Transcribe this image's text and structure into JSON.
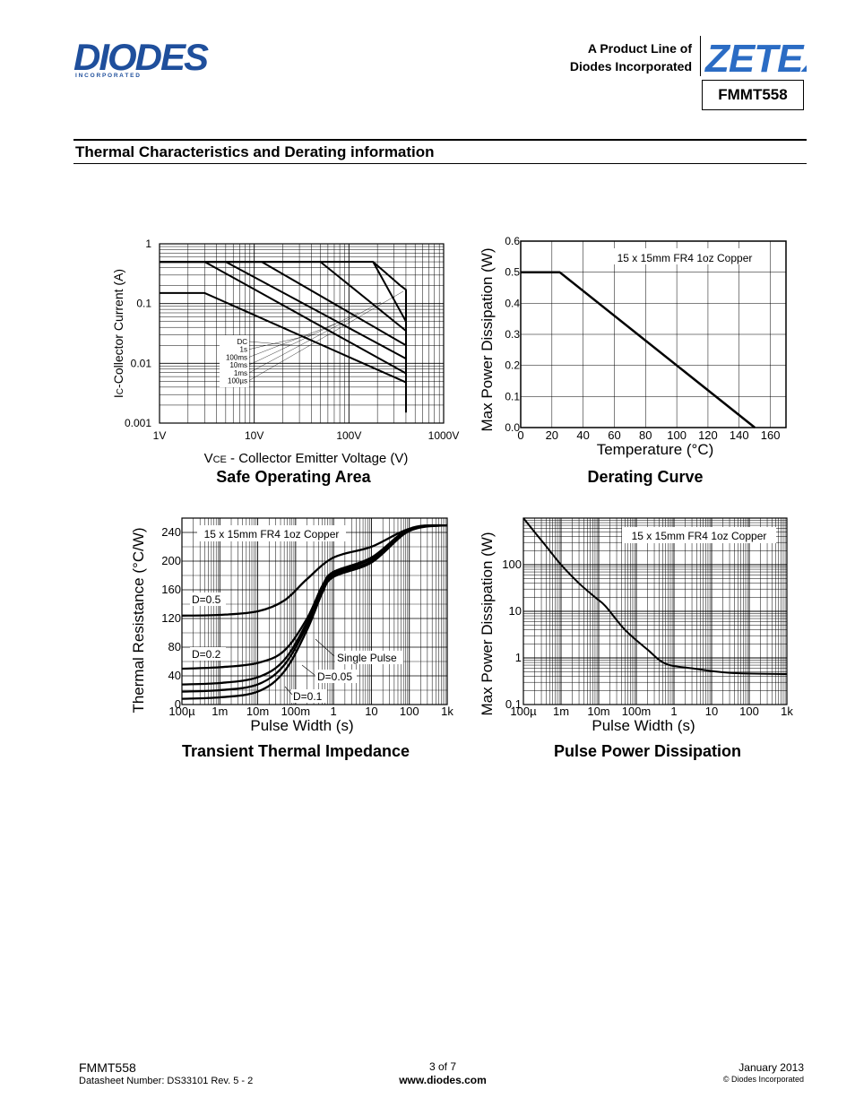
{
  "header": {
    "brand": "DIODES",
    "brand_sub": "I N C O R P O R A T E D",
    "product_line_1": "A Product Line of",
    "product_line_2": "Diodes Incorporated",
    "zetex": "ZETEX",
    "part": "FMMT558"
  },
  "section_title": "Thermal Characteristics and Derating information",
  "colors": {
    "brand_blue": "#1f4f9c",
    "zetex_blue": "#2b6cc4",
    "line": "#000000"
  },
  "chart_data": [
    {
      "type": "line",
      "title": "Safe Operating Area",
      "xlabel_prefix": "V",
      "xlabel_sub": "CE",
      "xlabel_rest": " - Collector Emitter Voltage (V)",
      "ylabel_prefix": "I",
      "ylabel_sub": "C",
      "ylabel_rest": "-Collector Current (A)",
      "x_scale": "log",
      "y_scale": "log",
      "xlim": [
        1,
        1000
      ],
      "ylim": [
        0.001,
        1
      ],
      "x_ticks": [
        {
          "v": 1,
          "label": "1V"
        },
        {
          "v": 10,
          "label": "10V"
        },
        {
          "v": 100,
          "label": "100V"
        },
        {
          "v": 1000,
          "label": "1000V"
        }
      ],
      "y_ticks": [
        {
          "v": 1,
          "label": "1"
        },
        {
          "v": 0.1,
          "label": "0.1"
        },
        {
          "v": 0.01,
          "label": "0.01"
        },
        {
          "v": 0.001,
          "label": "0.001"
        }
      ],
      "legend": [
        "DC",
        "1s",
        "100ms",
        "10ms",
        "1ms",
        "100µs"
      ],
      "series": [
        {
          "name": "DC",
          "points": [
            [
              1,
              0.15
            ],
            [
              3,
              0.15
            ],
            [
              400,
              0.0048
            ]
          ]
        },
        {
          "name": "1s",
          "points": [
            [
              1,
              0.5
            ],
            [
              3,
              0.5
            ],
            [
              400,
              0.0068
            ]
          ]
        },
        {
          "name": "100ms",
          "points": [
            [
              1,
              0.5
            ],
            [
              5,
              0.5
            ],
            [
              400,
              0.012
            ]
          ]
        },
        {
          "name": "10ms",
          "points": [
            [
              1,
              0.5
            ],
            [
              12,
              0.5
            ],
            [
              400,
              0.02
            ]
          ]
        },
        {
          "name": "1ms",
          "points": [
            [
              1,
              0.5
            ],
            [
              50,
              0.5
            ],
            [
              400,
              0.035
            ]
          ]
        },
        {
          "name": "100µs",
          "points": [
            [
              1,
              0.5
            ],
            [
              180,
              0.5
            ],
            [
              400,
              0.05
            ]
          ]
        }
      ],
      "limit_line": {
        "points": [
          [
            180,
            0.5
          ],
          [
            350,
            0.2
          ],
          [
            400,
            0.17
          ],
          [
            400,
            0.0015
          ]
        ]
      }
    },
    {
      "type": "line",
      "title": "Derating Curve",
      "xlabel": "Temperature (°C)",
      "ylabel": "Max Power Dissipation (W)",
      "annotation": "15 x 15mm FR4 1oz Copper",
      "xlim": [
        0,
        170
      ],
      "ylim": [
        0,
        0.6
      ],
      "x_ticks": [
        0,
        20,
        40,
        60,
        80,
        100,
        120,
        140,
        160
      ],
      "y_ticks": [
        0.0,
        0.1,
        0.2,
        0.3,
        0.4,
        0.5,
        0.6
      ],
      "y_tick_labels": [
        "0.0",
        "0.1",
        "0.2",
        "0.3",
        "0.4",
        "0.5",
        "0.6"
      ],
      "series": [
        {
          "points": [
            [
              0,
              0.5
            ],
            [
              25,
              0.5
            ],
            [
              150,
              0.0
            ]
          ]
        }
      ]
    },
    {
      "type": "line",
      "title": "Transient Thermal Impedance",
      "xlabel": "Pulse Width (s)",
      "ylabel": "Thermal Resistance (°C/W)",
      "annotation": "15 x 15mm FR4 1oz Copper",
      "x_scale": "log",
      "xlim": [
        0.0001,
        1000
      ],
      "ylim": [
        0,
        260
      ],
      "x_ticks": [
        {
          "v": 0.0001,
          "label": "100µ"
        },
        {
          "v": 0.001,
          "label": "1m"
        },
        {
          "v": 0.01,
          "label": "10m"
        },
        {
          "v": 0.1,
          "label": "100m"
        },
        {
          "v": 1,
          "label": "1"
        },
        {
          "v": 10,
          "label": "10"
        },
        {
          "v": 100,
          "label": "100"
        },
        {
          "v": 1000,
          "label": "1k"
        }
      ],
      "y_ticks": [
        0,
        40,
        80,
        120,
        160,
        200,
        240
      ],
      "series_labels": [
        "D=0.5",
        "D=0.2",
        "Single Pulse",
        "D=0.05",
        "D=0.1"
      ],
      "series": [
        {
          "name": "D=0.5",
          "points": [
            [
              0.0001,
              124
            ],
            [
              0.001,
              125
            ],
            [
              0.01,
              130
            ],
            [
              0.05,
              145
            ],
            [
              0.2,
              175
            ],
            [
              1,
              205
            ],
            [
              10,
              220
            ],
            [
              100,
              245
            ],
            [
              1000,
              250
            ]
          ]
        },
        {
          "name": "D=0.2",
          "points": [
            [
              0.0001,
              50
            ],
            [
              0.001,
              52
            ],
            [
              0.01,
              58
            ],
            [
              0.05,
              75
            ],
            [
              0.2,
              120
            ],
            [
              0.5,
              165
            ],
            [
              1,
              185
            ],
            [
              10,
              205
            ],
            [
              100,
              245
            ],
            [
              1000,
              250
            ]
          ]
        },
        {
          "name": "D=0.1",
          "points": [
            [
              0.0001,
              28
            ],
            [
              0.001,
              30
            ],
            [
              0.01,
              38
            ],
            [
              0.05,
              62
            ],
            [
              0.2,
              115
            ],
            [
              0.5,
              162
            ],
            [
              1,
              183
            ],
            [
              10,
              203
            ],
            [
              100,
              244
            ],
            [
              1000,
              250
            ]
          ]
        },
        {
          "name": "D=0.05",
          "points": [
            [
              0.0001,
              18
            ],
            [
              0.001,
              20
            ],
            [
              0.01,
              28
            ],
            [
              0.05,
              55
            ],
            [
              0.2,
              110
            ],
            [
              0.5,
              158
            ],
            [
              1,
              181
            ],
            [
              10,
              200
            ],
            [
              100,
              243
            ],
            [
              1000,
              250
            ]
          ]
        },
        {
          "name": "Single Pulse",
          "points": [
            [
              0.0001,
              8
            ],
            [
              0.001,
              10
            ],
            [
              0.01,
              18
            ],
            [
              0.05,
              46
            ],
            [
              0.2,
              104
            ],
            [
              0.5,
              155
            ],
            [
              1,
              178
            ],
            [
              10,
              198
            ],
            [
              100,
              242
            ],
            [
              1000,
              250
            ]
          ]
        }
      ]
    },
    {
      "type": "line",
      "title": "Pulse Power Dissipation",
      "xlabel": "Pulse Width (s)",
      "ylabel": "Max Power Dissipation (W)",
      "annotation": "15 x 15mm FR4 1oz Copper",
      "x_scale": "log",
      "y_scale": "log",
      "xlim": [
        0.0001,
        1000
      ],
      "ylim": [
        0.1,
        1000
      ],
      "x_ticks": [
        {
          "v": 0.0001,
          "label": "100µ"
        },
        {
          "v": 0.001,
          "label": "1m"
        },
        {
          "v": 0.01,
          "label": "10m"
        },
        {
          "v": 0.1,
          "label": "100m"
        },
        {
          "v": 1,
          "label": "1"
        },
        {
          "v": 10,
          "label": "10"
        },
        {
          "v": 100,
          "label": "100"
        },
        {
          "v": 1000,
          "label": "1k"
        }
      ],
      "y_ticks": [
        {
          "v": 0.1,
          "label": "0.1"
        },
        {
          "v": 1,
          "label": "1"
        },
        {
          "v": 10,
          "label": "10"
        },
        {
          "v": 100,
          "label": "100"
        }
      ],
      "series": [
        {
          "points": [
            [
              0.0001,
              1000
            ],
            [
              0.0002,
              500
            ],
            [
              0.0004,
              250
            ],
            [
              0.001,
              100
            ],
            [
              0.003,
              40
            ],
            [
              0.008,
              20
            ],
            [
              0.015,
              13
            ],
            [
              0.05,
              4
            ],
            [
              0.2,
              1.5
            ],
            [
              0.6,
              0.75
            ],
            [
              3,
              0.6
            ],
            [
              30,
              0.48
            ],
            [
              1000,
              0.45
            ]
          ]
        }
      ]
    }
  ],
  "footer": {
    "part": "FMMT558",
    "datasheet": "Datasheet Number: DS33101 Rev. 5 - 2",
    "page": "3 of 7",
    "url": "www.diodes.com",
    "date": "January 2013",
    "copyright": "© Diodes Incorporated"
  }
}
